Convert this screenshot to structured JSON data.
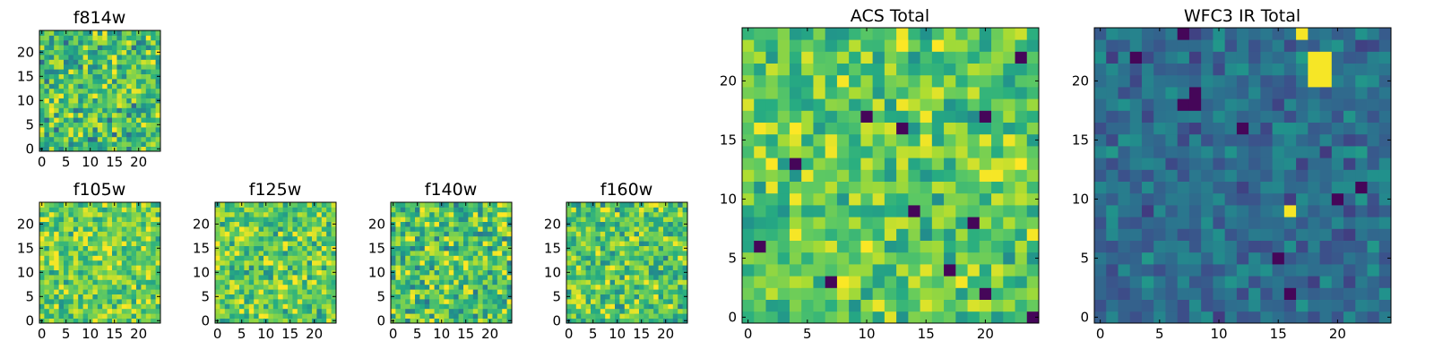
{
  "chart_data": [
    {
      "type": "heatmap",
      "title": "f814w",
      "grid_size": 25,
      "xlim": [
        -0.5,
        24.5
      ],
      "ylim": [
        -0.5,
        24.5
      ],
      "xticks": [
        0,
        5,
        10,
        15,
        20
      ],
      "yticks": [
        0,
        5,
        10,
        15,
        20
      ],
      "colormap": "viridis",
      "value_range": [
        0,
        1
      ],
      "noise": {
        "seed": 11,
        "mean": 0.7,
        "spread": 0.28
      }
    },
    {
      "type": "heatmap",
      "title": "f105w",
      "grid_size": 25,
      "xlim": [
        -0.5,
        24.5
      ],
      "ylim": [
        -0.5,
        24.5
      ],
      "xticks": [
        0,
        5,
        10,
        15,
        20
      ],
      "yticks": [
        0,
        5,
        10,
        15,
        20
      ],
      "colormap": "viridis",
      "value_range": [
        0,
        1
      ],
      "noise": {
        "seed": 23,
        "mean": 0.78,
        "spread": 0.22
      }
    },
    {
      "type": "heatmap",
      "title": "f125w",
      "grid_size": 25,
      "xlim": [
        -0.5,
        24.5
      ],
      "ylim": [
        -0.5,
        24.5
      ],
      "xticks": [
        0,
        5,
        10,
        15,
        20
      ],
      "yticks": [
        0,
        5,
        10,
        15,
        20
      ],
      "colormap": "viridis",
      "value_range": [
        0,
        1
      ],
      "noise": {
        "seed": 37,
        "mean": 0.76,
        "spread": 0.24
      }
    },
    {
      "type": "heatmap",
      "title": "f140w",
      "grid_size": 25,
      "xlim": [
        -0.5,
        24.5
      ],
      "ylim": [
        -0.5,
        24.5
      ],
      "xticks": [
        0,
        5,
        10,
        15,
        20
      ],
      "yticks": [
        0,
        5,
        10,
        15,
        20
      ],
      "colormap": "viridis",
      "value_range": [
        0,
        1
      ],
      "noise": {
        "seed": 41,
        "mean": 0.72,
        "spread": 0.28
      }
    },
    {
      "type": "heatmap",
      "title": "f160w",
      "grid_size": 25,
      "xlim": [
        -0.5,
        24.5
      ],
      "ylim": [
        -0.5,
        24.5
      ],
      "xticks": [
        0,
        5,
        10,
        15,
        20
      ],
      "yticks": [
        0,
        5,
        10,
        15,
        20
      ],
      "colormap": "viridis",
      "value_range": [
        0,
        1
      ],
      "noise": {
        "seed": 53,
        "mean": 0.74,
        "spread": 0.26
      }
    },
    {
      "type": "heatmap",
      "title": "ACS Total",
      "grid_size": 25,
      "xlim": [
        -0.5,
        24.5
      ],
      "ylim": [
        -0.5,
        24.5
      ],
      "xticks": [
        0,
        5,
        10,
        15,
        20
      ],
      "yticks": [
        0,
        5,
        10,
        15,
        20
      ],
      "colormap": "viridis",
      "value_range": [
        0,
        1
      ],
      "noise": {
        "seed": 67,
        "mean": 0.75,
        "spread": 0.2
      },
      "dark_cells": [
        [
          4,
          13
        ],
        [
          7,
          3
        ],
        [
          10,
          17
        ],
        [
          19,
          8
        ],
        [
          20,
          2
        ],
        [
          20,
          17
        ],
        [
          24,
          0
        ],
        [
          23,
          22
        ],
        [
          17,
          4
        ],
        [
          13,
          16
        ],
        [
          14,
          9
        ],
        [
          1,
          6
        ]
      ],
      "bright_cells": [
        [
          8,
          20
        ],
        [
          4,
          7
        ],
        [
          20,
          12
        ],
        [
          21,
          12
        ],
        [
          18,
          3
        ],
        [
          24,
          7
        ]
      ]
    },
    {
      "type": "heatmap",
      "title": "WFC3 IR Total",
      "grid_size": 25,
      "xlim": [
        -0.5,
        24.5
      ],
      "ylim": [
        -0.5,
        24.5
      ],
      "xticks": [
        0,
        5,
        10,
        15,
        20
      ],
      "yticks": [
        0,
        5,
        10,
        15,
        20
      ],
      "colormap": "viridis",
      "value_range": [
        0,
        1
      ],
      "noise": {
        "seed": 79,
        "mean": 0.36,
        "spread": 0.14
      },
      "dark_cells": [
        [
          7,
          18
        ],
        [
          8,
          18
        ],
        [
          8,
          19
        ],
        [
          3,
          22
        ],
        [
          15,
          5
        ],
        [
          20,
          10
        ],
        [
          22,
          11
        ],
        [
          7,
          24
        ],
        [
          16,
          2
        ],
        [
          12,
          16
        ]
      ],
      "bright_cells": [
        [
          18,
          21
        ],
        [
          19,
          21
        ],
        [
          18,
          22
        ],
        [
          19,
          22
        ],
        [
          18,
          20
        ],
        [
          19,
          20
        ],
        [
          17,
          24
        ],
        [
          16,
          9
        ]
      ]
    }
  ]
}
